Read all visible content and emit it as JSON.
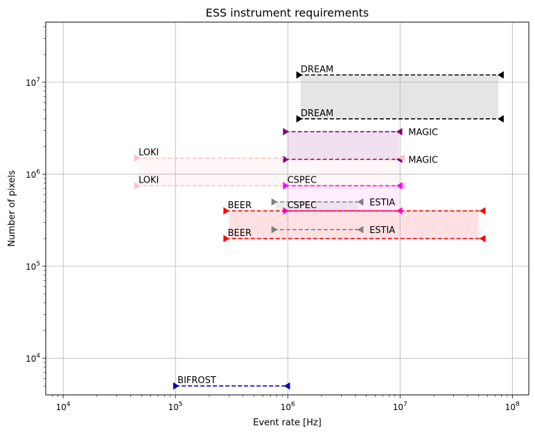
{
  "chart_data": {
    "type": "line",
    "title": "ESS instrument requirements",
    "xlabel": "Event rate [Hz]",
    "ylabel": "Number of pixels",
    "xscale": "log",
    "yscale": "log",
    "xlim": [
      7000,
      140000000
    ],
    "ylim": [
      4000,
      45000000
    ],
    "grid": true,
    "x_ticks": [
      {
        "value": 10000,
        "base": "10",
        "exp": "4"
      },
      {
        "value": 100000,
        "base": "10",
        "exp": "5"
      },
      {
        "value": 1000000,
        "base": "10",
        "exp": "6"
      },
      {
        "value": 10000000,
        "base": "10",
        "exp": "7"
      },
      {
        "value": 100000000,
        "base": "10",
        "exp": "8"
      }
    ],
    "y_ticks": [
      {
        "value": 10000,
        "base": "10",
        "exp": "4"
      },
      {
        "value": 100000,
        "base": "10",
        "exp": "5"
      },
      {
        "value": 1000000,
        "base": "10",
        "exp": "6"
      },
      {
        "value": 10000000,
        "base": "10",
        "exp": "7"
      }
    ],
    "instruments": [
      {
        "name": "DREAM",
        "color": "#000000",
        "fill": "#e5e5e5",
        "fill_opacity": 1,
        "x": [
          1300000,
          75000000
        ],
        "y": [
          4000000,
          12000000
        ],
        "x_range": [
          1250000,
          80000000
        ],
        "marker_left": "right",
        "marker_right": "left",
        "label_side": "left",
        "labels": [
          "DREAM",
          "DREAM"
        ]
      },
      {
        "name": "MAGIC",
        "color": "#800080",
        "fill": "#f0e1f0",
        "fill_opacity": 1,
        "x": [
          1000000,
          9800000
        ],
        "y": [
          1450000,
          2900000
        ],
        "x_range": [
          950000,
          10000000
        ],
        "marker_left": "right",
        "marker_right": "left",
        "label_side": "right",
        "labels": [
          "MAGIC",
          "MAGIC"
        ]
      },
      {
        "name": "LOKI",
        "color": "#ffc0cb",
        "fill": "#fff6f7",
        "fill_opacity": 1,
        "x": [
          47000,
          10000000
        ],
        "y": [
          750000,
          1500000
        ],
        "x_range": [
          45000,
          10500000
        ],
        "marker_left": "right",
        "marker_right": "left",
        "label_side": "left",
        "labels": [
          "LOKI",
          "LOKI"
        ]
      },
      {
        "name": "CSPEC",
        "color": "#ff00ff",
        "fill": "#ffe1ff",
        "fill_opacity": 0.6,
        "x": [
          1000000,
          10000000
        ],
        "y": [
          400000,
          750000
        ],
        "x_range": [
          950000,
          10000000
        ],
        "marker_left": "right",
        "marker_right": "left",
        "label_side": "left",
        "labels": [
          "CSPEC",
          "CSPEC"
        ]
      },
      {
        "name": "ESTIA",
        "color": "#808080",
        "fill": "#dcdcdc",
        "fill_opacity": 0.5,
        "x": [
          780000,
          4200000
        ],
        "y": [
          250000,
          500000
        ],
        "x_range": [
          750000,
          4500000
        ],
        "marker_left": "right",
        "marker_right": "left",
        "label_side": "right",
        "labels": [
          "ESTIA",
          "ESTIA"
        ]
      },
      {
        "name": "BEER",
        "color": "#ff0000",
        "fill": "#ffe1e4",
        "fill_opacity": 1,
        "x": [
          300000,
          50000000
        ],
        "y": [
          200000,
          400000
        ],
        "x_range": [
          280000,
          55000000
        ],
        "marker_left": "right",
        "marker_right": "left",
        "label_side": "left",
        "labels": [
          "BEER",
          "BEER"
        ]
      },
      {
        "name": "BIFROST",
        "color": "#0000cc",
        "fill": "none",
        "fill_opacity": 0,
        "x": [
          100000,
          1000000
        ],
        "y": [
          5000,
          5000
        ],
        "x_range": [
          100000,
          1000000
        ],
        "marker_left": "right",
        "marker_right": "left",
        "label_side": "left",
        "labels": [
          "BIFROST"
        ]
      }
    ]
  }
}
